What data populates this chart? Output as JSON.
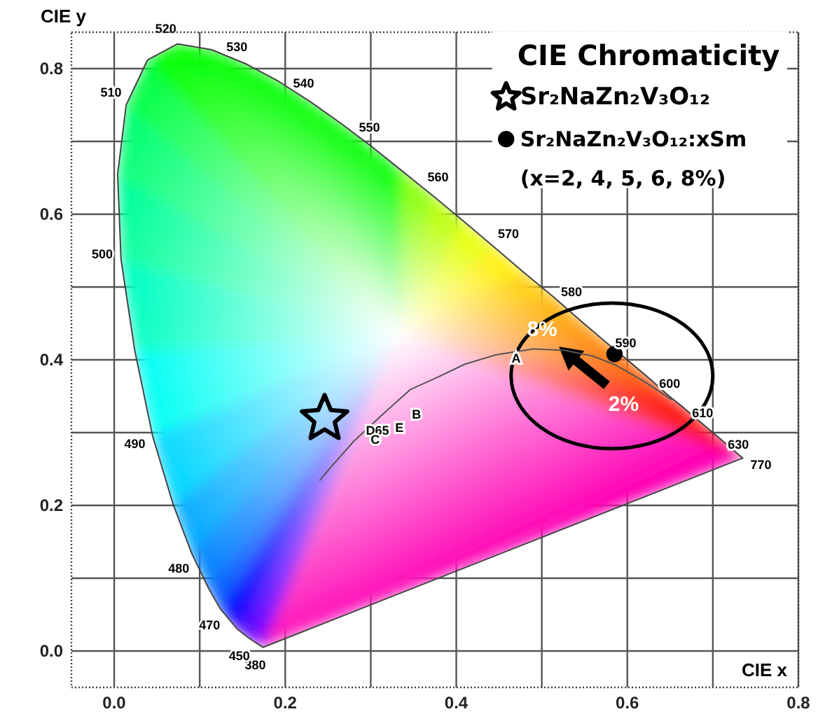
{
  "chart_data": {
    "type": "scatter",
    "xlabel": "CIE x",
    "ylabel": "CIE y",
    "legend_title": "CIE Chromaticity",
    "xlim": [
      -0.05,
      0.8
    ],
    "ylim": [
      -0.05,
      0.85
    ],
    "xticks": [
      {
        "value": 0,
        "label": "0.0"
      },
      {
        "value": 0.1,
        "label": null
      },
      {
        "value": 0.2,
        "label": "0.2"
      },
      {
        "value": 0.3,
        "label": null
      },
      {
        "value": 0.4,
        "label": "0.4"
      },
      {
        "value": 0.5,
        "label": null
      },
      {
        "value": 0.6,
        "label": "0.6"
      },
      {
        "value": 0.7,
        "label": null
      },
      {
        "value": 0.8,
        "label": "0.8"
      }
    ],
    "yticks": [
      {
        "value": 0,
        "label": "0.0"
      },
      {
        "value": 0.1,
        "label": null
      },
      {
        "value": 0.2,
        "label": "0.2"
      },
      {
        "value": 0.3,
        "label": null
      },
      {
        "value": 0.4,
        "label": "0.4"
      },
      {
        "value": 0.5,
        "label": null
      },
      {
        "value": 0.6,
        "label": "0.6"
      },
      {
        "value": 0.7,
        "label": null
      },
      {
        "value": 0.8,
        "label": "0.8"
      }
    ],
    "grid": true,
    "legend": "top right",
    "series": [
      {
        "type": "area",
        "color": "#444444",
        "x": [
          0.174,
          0.157,
          0.144,
          0.124,
          0.11,
          0.091,
          0.069,
          0.045,
          0.024,
          0.008,
          0.004,
          0.014,
          0.039,
          0.074,
          0.114,
          0.155,
          0.193,
          0.23,
          0.266,
          0.302,
          0.337,
          0.373,
          0.409,
          0.444,
          0.479,
          0.513,
          0.545,
          0.575,
          0.603,
          0.627,
          0.648,
          0.666,
          0.68,
          0.692,
          0.701,
          0.708,
          0.719,
          0.735,
          0.174
        ],
        "values": [
          0.005,
          0.018,
          0.03,
          0.058,
          0.087,
          0.133,
          0.201,
          0.295,
          0.413,
          0.538,
          0.655,
          0.75,
          0.812,
          0.834,
          0.826,
          0.806,
          0.782,
          0.754,
          0.724,
          0.692,
          0.659,
          0.625,
          0.59,
          0.555,
          0.52,
          0.487,
          0.454,
          0.424,
          0.397,
          0.373,
          0.351,
          0.334,
          0.32,
          0.308,
          0.299,
          0.292,
          0.281,
          0.265,
          0.005
        ]
      },
      {
        "type": "line",
        "color": "#555555",
        "x": [
          0.24,
          0.253,
          0.28,
          0.313,
          0.346,
          0.38,
          0.41,
          0.447,
          0.49,
          0.527,
          0.56,
          0.586,
          0.62,
          0.652
        ],
        "values": [
          0.234,
          0.252,
          0.288,
          0.324,
          0.359,
          0.377,
          0.394,
          0.407,
          0.415,
          0.413,
          0.405,
          0.393,
          0.37,
          0.345
        ]
      },
      {
        "name": "Sr₂NaZn₂V₃O₁₂",
        "color": "#000000",
        "marker": "star",
        "x": [
          0.246
        ],
        "values": [
          0.319
        ]
      },
      {
        "name": "Sr₂NaZn₂V₃O₁₂:xSm",
        "color": "#000000",
        "marker": "circle",
        "x": [
          0.585
        ],
        "values": [
          0.408
        ]
      }
    ],
    "annotations": [
      "(x=2, 4, 5, 6, 8%)",
      "8%",
      "2%",
      {
        "text": "380",
        "x": 0.1741,
        "y": 0.005
      },
      {
        "text": "450",
        "x": 0.1566,
        "y": 0.0177
      },
      {
        "text": "470",
        "x": 0.1241,
        "y": 0.0578
      },
      {
        "text": "480",
        "x": 0.0913,
        "y": 0.1327
      },
      {
        "text": "490",
        "x": 0.0454,
        "y": 0.295
      },
      {
        "text": "500",
        "x": 0.0082,
        "y": 0.5384
      },
      {
        "text": "510",
        "x": 0.0139,
        "y": 0.7502
      },
      {
        "text": "520",
        "x": 0.0743,
        "y": 0.8338
      },
      {
        "text": "530",
        "x": 0.1547,
        "y": 0.8059
      },
      {
        "text": "540",
        "x": 0.2296,
        "y": 0.7543
      },
      {
        "text": "550",
        "x": 0.3016,
        "y": 0.6923
      },
      {
        "text": "560",
        "x": 0.3731,
        "y": 0.6245
      },
      {
        "text": "570",
        "x": 0.4441,
        "y": 0.5547
      },
      {
        "text": "580",
        "x": 0.5125,
        "y": 0.4866
      },
      {
        "text": "590",
        "x": 0.5752,
        "y": 0.4242
      },
      {
        "text": "600",
        "x": 0.627,
        "y": 0.3725
      },
      {
        "text": "610",
        "x": 0.6658,
        "y": 0.334
      },
      {
        "text": "630",
        "x": 0.7079,
        "y": 0.292
      },
      {
        "text": "770",
        "x": 0.7347,
        "y": 0.2653
      },
      {
        "text": "D65",
        "x": 0.3127,
        "y": 0.329
      },
      {
        "text": "C",
        "x": 0.3101,
        "y": 0.3162
      },
      {
        "text": "E",
        "x": 0.3333,
        "y": 0.3333
      },
      {
        "text": "B",
        "x": 0.3484,
        "y": 0.3516
      },
      {
        "text": "A",
        "x": 0.4476,
        "y": 0.4074
      }
    ]
  }
}
